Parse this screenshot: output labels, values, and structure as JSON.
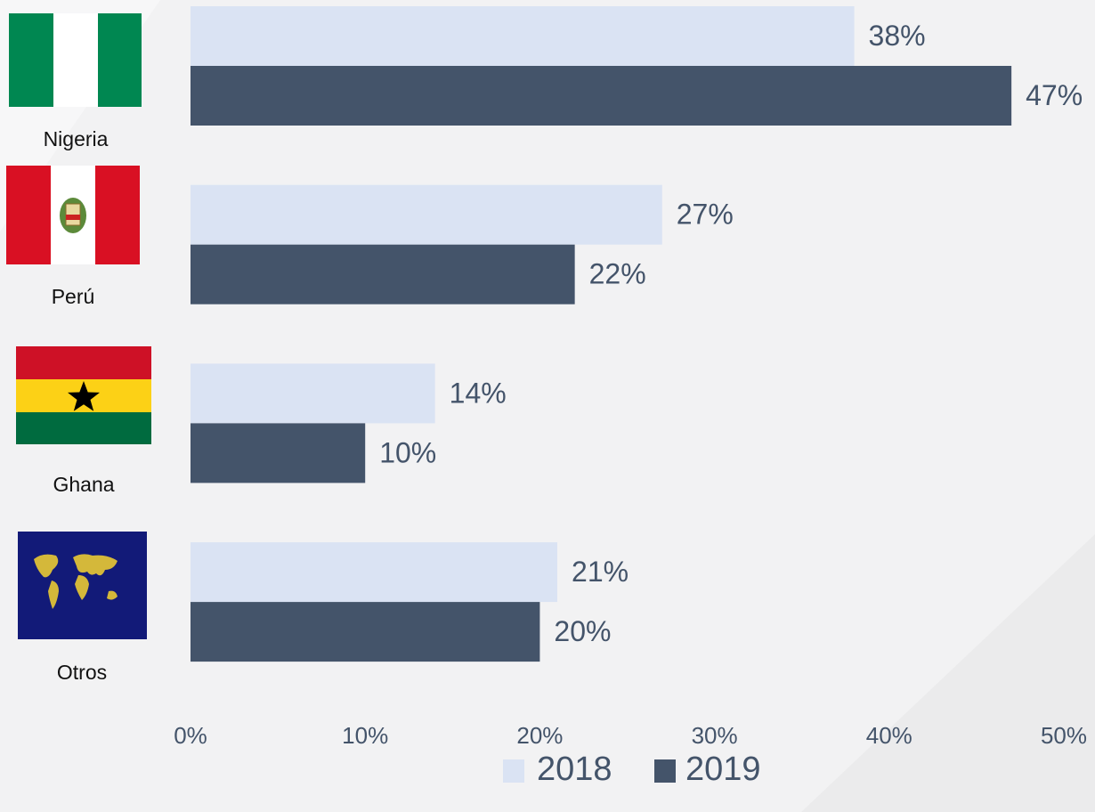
{
  "chart_data": {
    "type": "bar",
    "orientation": "horizontal",
    "categories": [
      "Nigeria",
      "Perú",
      "Ghana",
      "Otros"
    ],
    "series": [
      {
        "name": "2018",
        "color": "#dae3f3",
        "values": [
          38,
          27,
          14,
          21
        ],
        "value_labels": [
          "38%",
          "27%",
          "14%",
          "21%"
        ]
      },
      {
        "name": "2019",
        "color": "#44546a",
        "values": [
          47,
          22,
          10,
          20
        ],
        "value_labels": [
          "47%",
          "22%",
          "10%",
          "20%"
        ]
      }
    ],
    "xlim": [
      0,
      50
    ],
    "xticks": [
      {
        "value": 0,
        "label": "0%"
      },
      {
        "value": 10,
        "label": "10%"
      },
      {
        "value": 20,
        "label": "20%"
      },
      {
        "value": 30,
        "label": "30%"
      },
      {
        "value": 40,
        "label": "40%"
      },
      {
        "value": 50,
        "label": "50%"
      }
    ],
    "legend": "bottom"
  }
}
